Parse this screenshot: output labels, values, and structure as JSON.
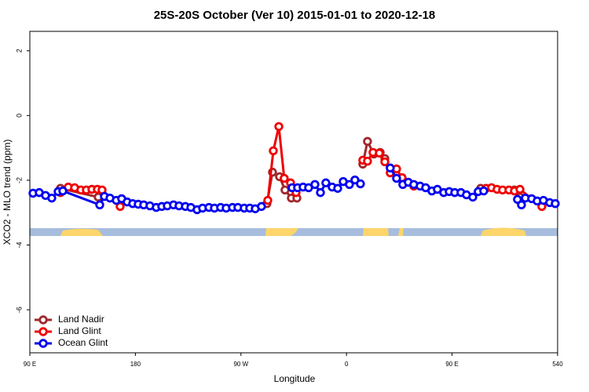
{
  "chart_data": {
    "type": "line",
    "title": "25S-20S October (Ver 10)   2015-01-01 to 2020-12-18",
    "x_label": "Longitude",
    "y_label": "XCO2 - MLO trend (ppm)",
    "xlim": [
      90,
      540
    ],
    "xticks": [
      {
        "value": 90,
        "label": "90 E"
      },
      180,
      {
        "value": 270,
        "label": "90 W"
      },
      {
        "value": 360,
        "label": "0"
      },
      {
        "value": 450,
        "label": "90 E"
      },
      540
    ],
    "ylim": [
      -7.33,
      2.6
    ],
    "yticks": [
      2,
      0,
      -2,
      -4,
      -6
    ],
    "grid": false,
    "legend": "bottom-left",
    "series": [
      {
        "name": "Land Nadir",
        "color": "#a0282c",
        "x": [
          116.1,
          148.3,
          null,
          292.2,
          296.9,
          302.9,
          307.6,
          313.0,
          317.7,
          null,
          373.9,
          377.9,
          383.3,
          388.7,
          392.7,
          null,
          474.4,
          503.2,
          507.9
        ],
        "values": [
          -2.25,
          -2.52,
          null,
          -2.72,
          -1.75,
          -1.89,
          -2.3,
          -2.55,
          -2.55,
          null,
          -1.5,
          -0.8,
          -1.19,
          -1.14,
          -1.33,
          null,
          -2.25,
          -2.3,
          -2.52
        ]
      },
      {
        "name": "Land Glint",
        "color": "#f00000",
        "x": [
          116.1,
          122.8,
          128.2,
          133.5,
          138.2,
          142.9,
          147.6,
          151.6,
          167.0,
          null,
          292.9,
          297.6,
          302.3,
          306.9,
          312.3,
          317.0,
          null,
          373.9,
          377.9,
          382.6,
          388.0,
          392.7,
          397.3,
          402.7,
          407.4,
          417.4,
          null,
          479.0,
          483.7,
          488.4,
          493.1,
          498.5,
          503.2,
          507.9,
          526.6
        ],
        "values": [
          -2.38,
          -2.21,
          -2.23,
          -2.3,
          -2.3,
          -2.28,
          -2.28,
          -2.3,
          -2.81,
          null,
          -2.62,
          -1.09,
          -0.34,
          -1.94,
          -2.08,
          -2.38,
          null,
          -1.38,
          -1.41,
          -1.14,
          -1.16,
          -1.43,
          -1.77,
          -1.65,
          -1.92,
          -2.18,
          null,
          -2.25,
          -2.23,
          -2.28,
          -2.3,
          -2.3,
          -2.33,
          -2.28,
          -2.81
        ]
      },
      {
        "name": "Ocean Glint",
        "color": "#0000f0",
        "x": [
          92.7,
          98.0,
          103.4,
          108.7,
          114.1,
          118.1,
          149.6,
          153.6,
          158.3,
          163.7,
          168.3,
          173.0,
          177.7,
          182.4,
          187.1,
          192.4,
          197.8,
          202.5,
          207.2,
          212.5,
          217.2,
          222.6,
          227.3,
          232.6,
          237.3,
          242.7,
          247.4,
          252.7,
          257.4,
          262.8,
          267.4,
          272.8,
          277.5,
          282.2,
          287.5,
          null,
          313.6,
          318.3,
          323.0,
          327.7,
          333.1,
          337.8,
          342.4,
          347.8,
          352.5,
          357.2,
          362.5,
          367.2,
          371.9,
          null,
          397.3,
          402.7,
          408.0,
          412.7,
          417.4,
          422.8,
          427.5,
          432.8,
          437.5,
          442.9,
          447.6,
          452.3,
          457.6,
          462.3,
          467.7,
          472.3,
          477.0,
          null,
          505.8,
          509.2,
          512.5,
          517.9,
          522.6,
          527.9,
          533.3,
          538.0
        ],
        "values": [
          -2.4,
          -2.38,
          -2.47,
          -2.55,
          -2.35,
          -2.33,
          -2.76,
          -2.5,
          -2.55,
          -2.62,
          -2.57,
          -2.67,
          -2.72,
          -2.74,
          -2.76,
          -2.79,
          -2.84,
          -2.81,
          -2.79,
          -2.76,
          -2.79,
          -2.81,
          -2.84,
          -2.91,
          -2.86,
          -2.84,
          -2.86,
          -2.84,
          -2.86,
          -2.84,
          -2.84,
          -2.86,
          -2.86,
          -2.88,
          -2.81,
          null,
          -2.23,
          -2.23,
          -2.21,
          -2.23,
          -2.13,
          -2.38,
          -2.08,
          -2.21,
          -2.25,
          -2.04,
          -2.13,
          -1.99,
          -2.11,
          null,
          -1.62,
          -1.94,
          -2.13,
          -2.06,
          -2.13,
          -2.18,
          -2.23,
          -2.33,
          -2.28,
          -2.38,
          -2.35,
          -2.38,
          -2.38,
          -2.45,
          -2.52,
          -2.35,
          -2.33,
          null,
          -2.59,
          -2.76,
          -2.55,
          -2.57,
          -2.64,
          -2.62,
          -2.69,
          -2.72
        ]
      }
    ]
  }
}
